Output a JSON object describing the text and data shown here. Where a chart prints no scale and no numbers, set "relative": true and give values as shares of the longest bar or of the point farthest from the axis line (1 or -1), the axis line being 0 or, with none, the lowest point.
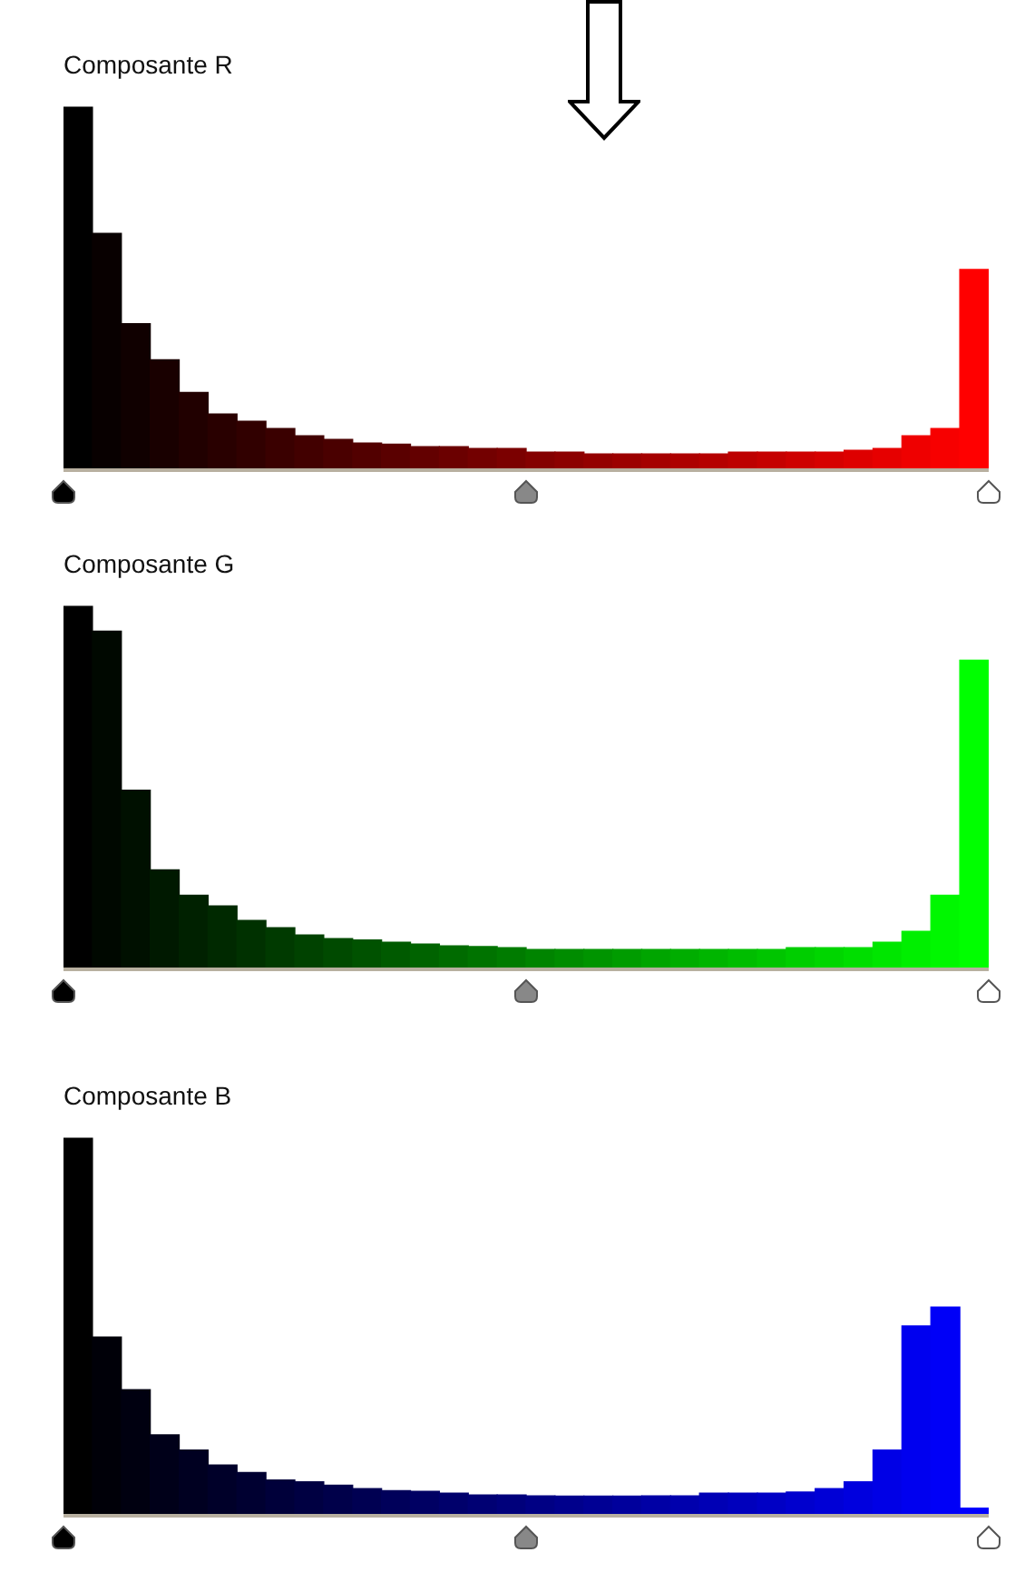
{
  "chart_data": [
    {
      "type": "bar",
      "title": "Composante R",
      "relative": true,
      "categories": [
        null,
        null,
        null,
        null,
        null,
        null,
        null,
        null,
        null,
        null,
        null,
        null,
        null,
        null,
        null,
        null,
        null,
        null,
        null,
        null,
        null,
        null,
        null,
        null,
        null,
        null,
        null,
        null,
        null,
        null,
        null,
        null
      ],
      "values": [
        1,
        0.65,
        0.4,
        0.3,
        0.21,
        0.15,
        0.13,
        0.11,
        0.09,
        0.08,
        0.07,
        0.067,
        0.06,
        0.06,
        0.055,
        0.055,
        0.045,
        0.045,
        0.04,
        0.04,
        0.04,
        0.04,
        0.04,
        0.045,
        0.045,
        0.045,
        0.045,
        0.05,
        0.055,
        0.09,
        0.11,
        0.55
      ],
      "colors": [
        "#000000",
        "#080000",
        "#100000",
        "#190000",
        "#210000",
        "#290000",
        "#310000",
        "#3a0000",
        "#420000",
        "#4a0000",
        "#520000",
        "#5a0000",
        "#630000",
        "#6b0000",
        "#730000",
        "#7b0000",
        "#840000",
        "#8c0000",
        "#940000",
        "#9c0000",
        "#a50000",
        "#ad0000",
        "#b50000",
        "#bd0000",
        "#c50000",
        "#ce0000",
        "#d60000",
        "#de0000",
        "#e60000",
        "#ef0000",
        "#f70000",
        "#ff0000"
      ]
    },
    {
      "type": "bar",
      "title": "Composante G",
      "relative": true,
      "categories": [
        null,
        null,
        null,
        null,
        null,
        null,
        null,
        null,
        null,
        null,
        null,
        null,
        null,
        null,
        null,
        null,
        null,
        null,
        null,
        null,
        null,
        null,
        null,
        null,
        null,
        null,
        null,
        null,
        null,
        null,
        null,
        null
      ],
      "values": [
        1,
        0.93,
        0.49,
        0.27,
        0.2,
        0.17,
        0.13,
        0.11,
        0.09,
        0.08,
        0.076,
        0.07,
        0.065,
        0.06,
        0.058,
        0.055,
        0.05,
        0.05,
        0.05,
        0.05,
        0.05,
        0.05,
        0.05,
        0.05,
        0.05,
        0.055,
        0.055,
        0.055,
        0.07,
        0.1,
        0.2,
        0.85
      ],
      "colors": [
        "#000000",
        "#000800",
        "#001000",
        "#001900",
        "#002100",
        "#002900",
        "#003100",
        "#003a00",
        "#004200",
        "#004a00",
        "#005200",
        "#005a00",
        "#006300",
        "#006b00",
        "#007300",
        "#007b00",
        "#008400",
        "#008c00",
        "#009400",
        "#009c00",
        "#00a500",
        "#00ad00",
        "#00b500",
        "#00bd00",
        "#00c500",
        "#00ce00",
        "#00d600",
        "#00de00",
        "#00e600",
        "#00ef00",
        "#00f700",
        "#00ff00"
      ]
    },
    {
      "type": "bar",
      "title": "Composante B",
      "relative": true,
      "categories": [
        null,
        null,
        null,
        null,
        null,
        null,
        null,
        null,
        null,
        null,
        null,
        null,
        null,
        null,
        null,
        null,
        null,
        null,
        null,
        null,
        null,
        null,
        null,
        null,
        null,
        null,
        null,
        null,
        null,
        null,
        null,
        null
      ],
      "values": [
        1,
        0.47,
        0.33,
        0.21,
        0.17,
        0.13,
        0.11,
        0.09,
        0.085,
        0.076,
        0.067,
        0.062,
        0.06,
        0.055,
        0.05,
        0.05,
        0.048,
        0.047,
        0.047,
        0.047,
        0.048,
        0.048,
        0.055,
        0.055,
        0.055,
        0.058,
        0.067,
        0.085,
        0.17,
        0.5,
        0.55,
        0.015
      ],
      "colors": [
        "#000000",
        "#000008",
        "#000010",
        "#000019",
        "#000021",
        "#000029",
        "#000031",
        "#00003a",
        "#000042",
        "#00004a",
        "#000052",
        "#00005a",
        "#000063",
        "#00006b",
        "#000073",
        "#00007b",
        "#000084",
        "#00008c",
        "#000094",
        "#00009c",
        "#0000a5",
        "#0000ad",
        "#0000b5",
        "#0000bd",
        "#0000c5",
        "#0000ce",
        "#0000d6",
        "#0000de",
        "#0000e6",
        "#0000ef",
        "#0000f7",
        "#0000ff"
      ]
    }
  ]
}
